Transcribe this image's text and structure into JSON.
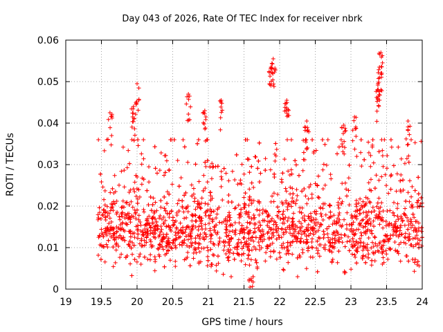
{
  "chart_data": {
    "type": "scatter",
    "title": "Day 043 of 2026, Rate Of TEC Index for receiver nbrk",
    "xlabel": "GPS time / hours",
    "ylabel": "ROTI / TECUs",
    "xlim": [
      19,
      24
    ],
    "ylim": [
      0,
      0.06
    ],
    "xticks": [
      "19",
      "19.5",
      "20",
      "20.5",
      "21",
      "21.5",
      "22",
      "22.5",
      "23",
      "23.5",
      "24"
    ],
    "yticks": [
      "0",
      "0.01",
      "0.02",
      "0.03",
      "0.04",
      "0.05",
      "0.06"
    ],
    "grid": true,
    "marker": "plus",
    "color": "#ff0000",
    "series": [
      {
        "name": "ROTI",
        "x_start": 19.45,
        "x_end": 24.0,
        "typical_range": [
          0.005,
          0.025
        ],
        "median": 0.014,
        "notable_points": [
          {
            "x": 19.62,
            "y": 0.0425
          },
          {
            "x": 19.95,
            "y": 0.044
          },
          {
            "x": 20.0,
            "y": 0.0495
          },
          {
            "x": 20.72,
            "y": 0.047
          },
          {
            "x": 20.95,
            "y": 0.043
          },
          {
            "x": 21.18,
            "y": 0.0455
          },
          {
            "x": 21.6,
            "y": 0.0025
          },
          {
            "x": 21.88,
            "y": 0.0535
          },
          {
            "x": 21.91,
            "y": 0.0555
          },
          {
            "x": 22.1,
            "y": 0.0455
          },
          {
            "x": 22.38,
            "y": 0.0405
          },
          {
            "x": 22.9,
            "y": 0.0395
          },
          {
            "x": 23.05,
            "y": 0.0415
          },
          {
            "x": 23.42,
            "y": 0.057
          },
          {
            "x": 23.4,
            "y": 0.0535
          },
          {
            "x": 23.38,
            "y": 0.048
          },
          {
            "x": 23.8,
            "y": 0.0405
          }
        ]
      }
    ]
  }
}
